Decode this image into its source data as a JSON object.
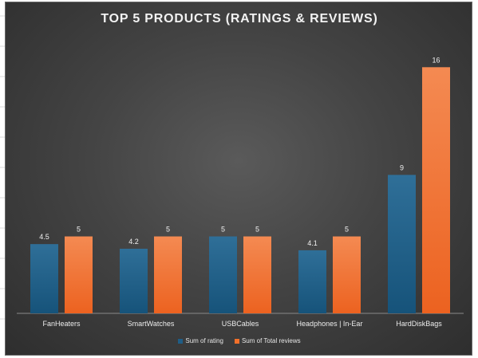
{
  "chart_data": {
    "type": "bar",
    "title": "TOP 5 PRODUCTS (RATINGS & REVIEWS)",
    "categories": [
      "FanHeaters",
      "SmartWatches",
      "USBCables",
      "Headphones | In-Ear",
      "HardDiskBags"
    ],
    "series": [
      {
        "name": "Sum of rating",
        "values": [
          4.5,
          4.2,
          5,
          4.1,
          9
        ],
        "labels": [
          "4.5",
          "4.2",
          "5",
          "4.1",
          "9"
        ],
        "color": "#1f5d86"
      },
      {
        "name": "Sum of Total reviews",
        "values": [
          5,
          5,
          5,
          5,
          16
        ],
        "labels": [
          "5",
          "5",
          "5",
          "5",
          "16"
        ],
        "color": "#f2702a"
      }
    ],
    "ylim": [
      0,
      17
    ],
    "grid": false,
    "legend_position": "bottom"
  }
}
